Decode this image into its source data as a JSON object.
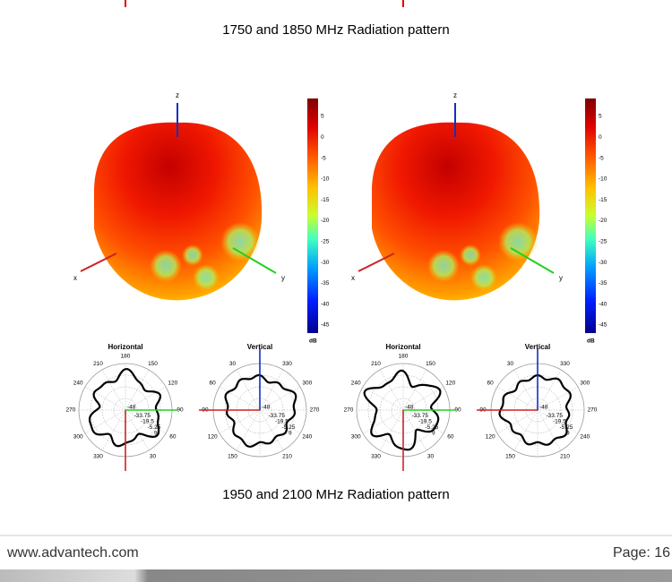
{
  "top_caption": "1750 and 1850 MHz Radiation pattern",
  "figures": [
    {
      "axes": {
        "z": "z",
        "x": "x",
        "y": "y"
      },
      "colorbar": {
        "ticks": [
          5,
          0,
          -5,
          -10,
          -15,
          -20,
          -25,
          -30,
          -35,
          -40,
          -45
        ],
        "unit": "dB"
      },
      "horizontal": {
        "title": "Horizontal",
        "angle_labels": [
          "180",
          "150",
          "120",
          "90",
          "60",
          "30",
          "330",
          "300",
          "270",
          "240",
          "210"
        ],
        "ring_labels": [
          "-48",
          "-33.75",
          "-19.5",
          "-5.25",
          "9"
        ]
      },
      "vertical": {
        "title": "Vertical",
        "angle_labels": [
          "330",
          "300",
          "270",
          "240",
          "210",
          "150",
          "120",
          "90",
          "60",
          "30"
        ],
        "ring_labels": [
          "-48",
          "-33.75",
          "-19.5",
          "-5.25",
          "9"
        ]
      }
    },
    {
      "axes": {
        "z": "z",
        "x": "x",
        "y": "y"
      },
      "colorbar": {
        "ticks": [
          5,
          0,
          -5,
          -10,
          -15,
          -20,
          -25,
          -30,
          -35,
          -40,
          -45
        ],
        "unit": "dB"
      },
      "horizontal": {
        "title": "Horizontal",
        "angle_labels": [
          "180",
          "150",
          "120",
          "90",
          "60",
          "30",
          "330",
          "300",
          "270",
          "240",
          "210"
        ],
        "ring_labels": [
          "-48",
          "-33.75",
          "-19.5",
          "-5.25",
          "9"
        ]
      },
      "vertical": {
        "title": "Vertical",
        "angle_labels": [
          "330",
          "300",
          "270",
          "240",
          "210",
          "150",
          "120",
          "90",
          "60",
          "30"
        ],
        "ring_labels": [
          "-48",
          "-33.75",
          "-19.5",
          "-5.25",
          "9"
        ]
      }
    }
  ],
  "bottom_caption": "1950 and 2100 MHz Radiation pattern",
  "footer": {
    "url": "www.advantech.com",
    "page": "Page: 16"
  }
}
